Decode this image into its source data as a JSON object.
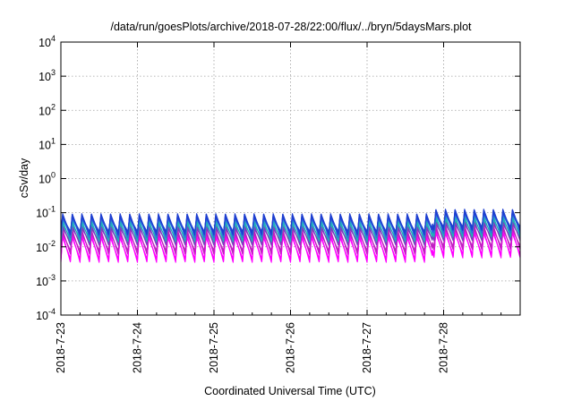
{
  "chart_data": {
    "type": "line",
    "title": "/data/run/goesPlots/archive/2018-07-28/22:00/flux/../bryn/5daysMars.plot",
    "xlabel": "Coordinated Universal Time (UTC)",
    "ylabel": "cSv/day",
    "yscale": "log",
    "ylim": [
      0.0001,
      10000
    ],
    "y_ticks": [
      {
        "base": "10",
        "exp": "-4"
      },
      {
        "base": "10",
        "exp": "-3"
      },
      {
        "base": "10",
        "exp": "-2"
      },
      {
        "base": "10",
        "exp": "-1"
      },
      {
        "base": "10",
        "exp": "0"
      },
      {
        "base": "10",
        "exp": "1"
      },
      {
        "base": "10",
        "exp": "2"
      },
      {
        "base": "10",
        "exp": "3"
      },
      {
        "base": "10",
        "exp": "4"
      }
    ],
    "x_ticks": [
      "2018-7-23",
      "2018-7-24",
      "2018-7-25",
      "2018-7-26",
      "2018-7-27",
      "2018-7-28"
    ],
    "xlim_days": [
      0,
      6
    ],
    "grid": true,
    "oscillation_cycles_per_day": 8,
    "series": [
      {
        "color": "#1e3fd0",
        "peak": 0.095,
        "trough": 0.022
      },
      {
        "color": "#2a6ee0",
        "peak": 0.085,
        "trough": 0.018
      },
      {
        "color": "#20b0b8",
        "peak": 0.06,
        "trough": 0.014
      },
      {
        "color": "#7a3fc0",
        "peak": 0.045,
        "trough": 0.011
      },
      {
        "color": "#c020c0",
        "peak": 0.032,
        "trough": 0.006
      },
      {
        "color": "#ff00ff",
        "peak": 0.024,
        "trough": 0.0035
      }
    ]
  }
}
